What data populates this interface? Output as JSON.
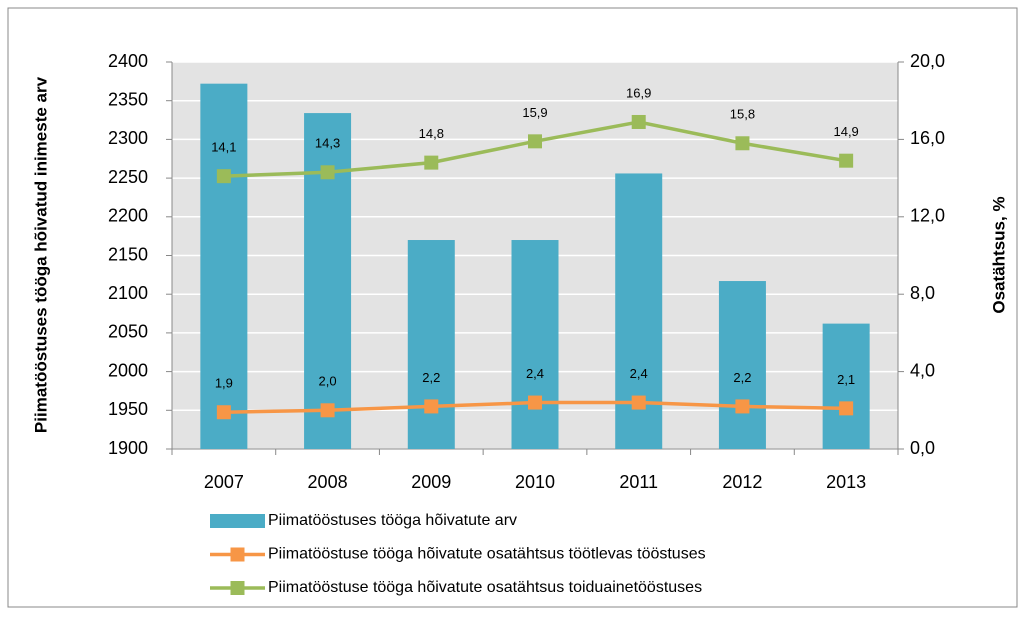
{
  "chart_data": {
    "type": "bar",
    "categories": [
      "2007",
      "2008",
      "2009",
      "2010",
      "2011",
      "2012",
      "2013"
    ],
    "ylabel": "Piimatööstuses tööga hõivatud inimeste arv",
    "y2label": "Osatähtsus, %",
    "ylim": [
      1900,
      2400
    ],
    "yticks": [
      1900,
      1950,
      2000,
      2050,
      2100,
      2150,
      2200,
      2250,
      2300,
      2350,
      2400
    ],
    "y2lim": [
      0,
      20
    ],
    "y2ticks": [
      {
        "value": 0,
        "label": "0,0"
      },
      {
        "value": 4,
        "label": "4,0"
      },
      {
        "value": 8,
        "label": "8,0"
      },
      {
        "value": 12,
        "label": "12,0"
      },
      {
        "value": 16,
        "label": "16,0"
      },
      {
        "value": 20,
        "label": "20,0"
      }
    ],
    "grid": true,
    "series": [
      {
        "name": "Piimatööstuses tööga hõivatute arv",
        "type": "bar",
        "color": "#4bacc6",
        "values": [
          2372,
          2334,
          2170,
          2170,
          2256,
          2117,
          2062
        ]
      },
      {
        "name": "Piimatööstuse tööga hõivatute osatähtsus töötlevas tööstuses",
        "type": "line",
        "axis": "y2",
        "color": "#f79646",
        "values": [
          1.9,
          2.0,
          2.2,
          2.4,
          2.4,
          2.2,
          2.1
        ],
        "value_labels": [
          "1,9",
          "2,0",
          "2,2",
          "2,4",
          "2,4",
          "2,2",
          "2,1"
        ]
      },
      {
        "name": "Piimatööstuse tööga hõivatute osatähtsus toiduainetööstuses",
        "type": "line",
        "axis": "y2",
        "color": "#9bbb59",
        "values": [
          14.1,
          14.3,
          14.8,
          15.9,
          16.9,
          15.8,
          14.9
        ],
        "value_labels": [
          "14,1",
          "14,3",
          "14,8",
          "15,9",
          "16,9",
          "15,8",
          "14,9"
        ]
      }
    ]
  }
}
